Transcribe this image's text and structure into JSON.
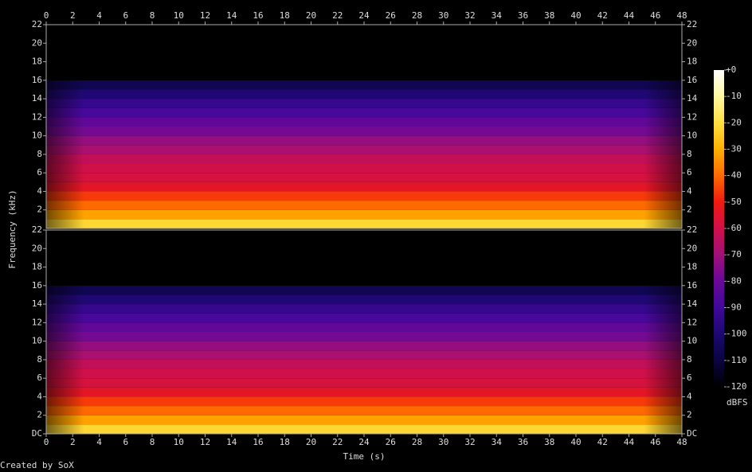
{
  "chart_data": {
    "type": "spectrogram",
    "xlabel": "Time (s)",
    "ylabel": "Frequency (kHz)",
    "footer": "Created by SoX",
    "xlim": [
      0,
      48
    ],
    "xticks": [
      0,
      2,
      4,
      6,
      8,
      10,
      12,
      14,
      16,
      18,
      20,
      22,
      24,
      26,
      28,
      30,
      32,
      34,
      36,
      38,
      40,
      42,
      44,
      46,
      48
    ],
    "ylim": [
      0,
      22
    ],
    "channels": [
      {
        "yticks": [
          2,
          4,
          6,
          8,
          10,
          12,
          14,
          16,
          18,
          20,
          22
        ],
        "bins": [
          0,
          1,
          2,
          3,
          4,
          5,
          6,
          7,
          8,
          9,
          10,
          11,
          12,
          13,
          14,
          15,
          16,
          22
        ],
        "levels": [
          -22,
          -32,
          -40,
          -46,
          -54,
          -58,
          -60,
          -63,
          -68,
          -72,
          -78,
          -82,
          -88,
          -93,
          -99,
          -106,
          -120
        ]
      },
      {
        "yticks": [
          {
            "value": 0,
            "label": "DC"
          },
          2,
          4,
          6,
          8,
          10,
          12,
          14,
          16,
          18,
          20,
          22
        ],
        "bins": [
          0,
          1,
          2,
          3,
          4,
          5,
          6,
          7,
          8,
          9,
          10,
          11,
          12,
          13,
          14,
          15,
          16,
          22
        ],
        "levels": [
          -22,
          -32,
          -40,
          -46,
          -54,
          -58,
          -60,
          -63,
          -68,
          -72,
          -78,
          -82,
          -88,
          -93,
          -99,
          -106,
          -120
        ]
      }
    ],
    "colorbar_label": "dBFS",
    "clim": [
      -120,
      0
    ],
    "cticks": [
      {
        "value": 0,
        "label": "+0"
      },
      -10,
      -20,
      -30,
      -40,
      -50,
      -60,
      -70,
      -80,
      -90,
      -100,
      -110,
      -120
    ],
    "ccolors": [
      "#ffffff",
      "#fff8a0",
      "#ffe040",
      "#ffb000",
      "#ff6a00",
      "#f01a10",
      "#d0104a",
      "#a0107a",
      "#6a0898",
      "#40089a",
      "#1c0870",
      "#0a0440",
      "#000000"
    ]
  }
}
